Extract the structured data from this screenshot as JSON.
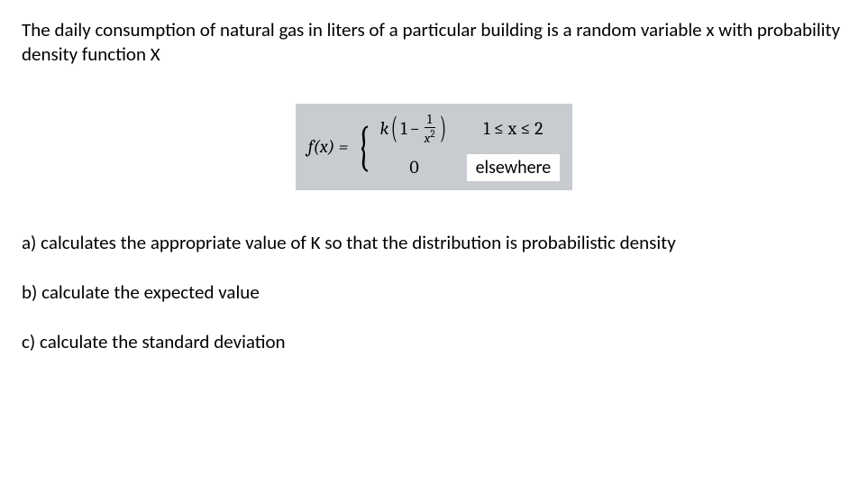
{
  "intro": "The daily consumption of natural gas in liters of a particular building is a random variable x with probability density function X",
  "formula": {
    "lhs": "f(x) =",
    "case1": {
      "k": "k",
      "lp": "(",
      "one": "1",
      "minus": "−",
      "num": "1",
      "den_base": "x",
      "den_exp": "2",
      "rp": ")"
    },
    "cond1": "1 ≤ x ≤ 2",
    "case2": "0",
    "cond2": "elsewhere"
  },
  "qa": "a) calculates the appropriate value of K so that the distribution is probabilistic density",
  "qb": "b) calculate the expected value",
  "qc": "c) calculate the standard deviation",
  "style": {
    "box_bg": "#c8ccd0",
    "cond_bg": "#ffffff",
    "text_color": "#000000",
    "body_fontsize": 21,
    "formula_fontsize": 20
  }
}
